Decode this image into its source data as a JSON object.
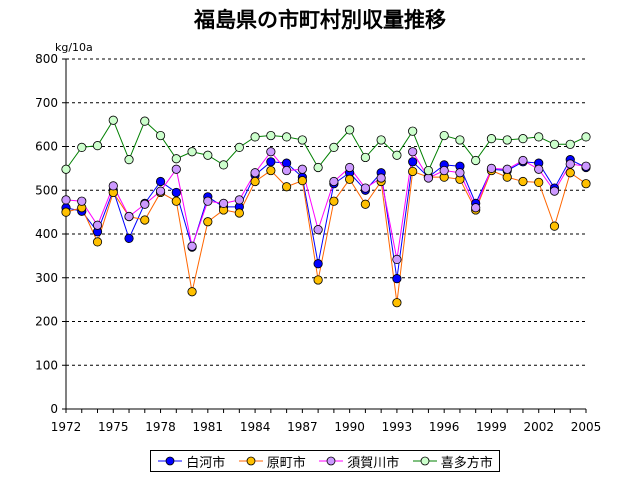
{
  "chart_data": {
    "type": "line",
    "title": "福島県の市町村別収量推移",
    "ylabel": "kg/10a",
    "xlabel": "",
    "ylim": [
      0,
      800
    ],
    "yticks": [
      0,
      100,
      200,
      300,
      400,
      500,
      600,
      700,
      800
    ],
    "xtick_labels": [
      "1972",
      "1975",
      "1978",
      "1981",
      "1984",
      "1987",
      "1990",
      "1993",
      "1996",
      "1999",
      "2002",
      "2005"
    ],
    "x": [
      1972,
      1973,
      1974,
      1975,
      1976,
      1977,
      1978,
      1979,
      1980,
      1981,
      1982,
      1983,
      1984,
      1985,
      1986,
      1987,
      1988,
      1989,
      1990,
      1991,
      1992,
      1993,
      1994,
      1995,
      1996,
      1997,
      1998,
      1999,
      2000,
      2001,
      2002,
      2003,
      2004,
      2005
    ],
    "grid": "horizontal-dashed",
    "legend_position": "bottom",
    "series": [
      {
        "name": "白河市",
        "color": "#0000ff",
        "line_color": "#0000ff",
        "values": [
          460,
          452,
          405,
          500,
          390,
          470,
          520,
          495,
          370,
          485,
          462,
          462,
          535,
          565,
          562,
          530,
          332,
          515,
          540,
          500,
          540,
          298,
          565,
          530,
          558,
          555,
          470,
          548,
          545,
          565,
          562,
          505,
          570,
          552
        ]
      },
      {
        "name": "原町市",
        "color": "#ffc000",
        "line_color": "#ff6600",
        "values": [
          450,
          460,
          382,
          495,
          440,
          432,
          495,
          475,
          268,
          428,
          455,
          448,
          520,
          545,
          508,
          522,
          295,
          475,
          525,
          468,
          520,
          243,
          543,
          530,
          530,
          525,
          455,
          545,
          530,
          520,
          518,
          418,
          540,
          515
        ]
      },
      {
        "name": "須賀川市",
        "color": "#cc99ff",
        "line_color": "#ff00ff",
        "values": [
          478,
          475,
          420,
          510,
          440,
          468,
          498,
          548,
          372,
          475,
          470,
          478,
          540,
          588,
          545,
          548,
          410,
          520,
          552,
          505,
          528,
          342,
          588,
          528,
          545,
          540,
          460,
          550,
          548,
          568,
          548,
          498,
          560,
          555
        ]
      },
      {
        "name": "喜多方市",
        "color": "#ccffcc",
        "line_color": "#008000",
        "values": [
          548,
          598,
          602,
          660,
          570,
          658,
          625,
          572,
          588,
          580,
          558,
          598,
          622,
          625,
          622,
          615,
          552,
          598,
          638,
          575,
          615,
          580,
          635,
          545,
          625,
          615,
          568,
          618,
          615,
          618,
          622,
          605,
          605,
          622
        ]
      }
    ]
  }
}
